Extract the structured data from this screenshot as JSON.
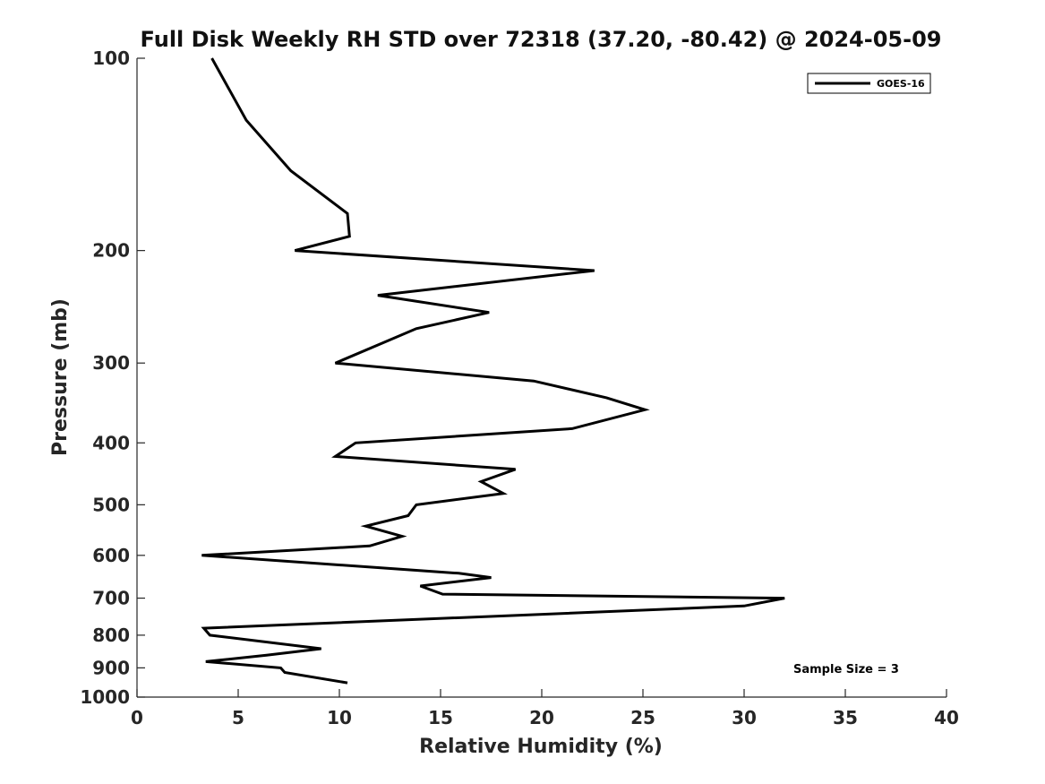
{
  "chart_data": {
    "type": "line",
    "title": "Full Disk Weekly RH STD over 72318 (37.20, -80.42) @ 2024-05-09",
    "xlabel": "Relative Humidity (%)",
    "ylabel": "Pressure (mb)",
    "xlim": [
      0,
      40
    ],
    "ylim": [
      1000,
      100
    ],
    "y_scale": "log",
    "x_ticks": [
      0,
      5,
      10,
      15,
      20,
      25,
      30,
      35,
      40
    ],
    "y_ticks": [
      100,
      200,
      300,
      400,
      500,
      600,
      700,
      800,
      900,
      1000
    ],
    "grid": false,
    "legend_position": "top-right",
    "series": [
      {
        "name": "GOES-16",
        "color": "#000000",
        "points": [
          [
            3.7,
            100
          ],
          [
            5.4,
            125
          ],
          [
            7.6,
            150
          ],
          [
            10.4,
            175
          ],
          [
            10.5,
            190
          ],
          [
            7.8,
            200
          ],
          [
            22.6,
            215
          ],
          [
            11.9,
            235
          ],
          [
            17.4,
            250
          ],
          [
            13.8,
            265
          ],
          [
            9.8,
            300
          ],
          [
            19.6,
            320
          ],
          [
            23.2,
            340
          ],
          [
            25.1,
            355
          ],
          [
            21.5,
            380
          ],
          [
            10.8,
            400
          ],
          [
            9.8,
            420
          ],
          [
            18.7,
            440
          ],
          [
            17.0,
            460
          ],
          [
            18.1,
            480
          ],
          [
            13.8,
            500
          ],
          [
            13.4,
            520
          ],
          [
            11.3,
            540
          ],
          [
            13.1,
            560
          ],
          [
            11.5,
            580
          ],
          [
            3.2,
            600
          ],
          [
            15.9,
            640
          ],
          [
            17.5,
            650
          ],
          [
            14.0,
            670
          ],
          [
            15.1,
            690
          ],
          [
            32.0,
            700
          ],
          [
            30.0,
            720
          ],
          [
            3.3,
            780
          ],
          [
            3.6,
            800
          ],
          [
            9.1,
            840
          ],
          [
            6.4,
            860
          ],
          [
            3.4,
            880
          ],
          [
            7.1,
            900
          ],
          [
            7.3,
            915
          ],
          [
            10.4,
            950
          ]
        ]
      }
    ],
    "annotation": "Sample Size = 3"
  }
}
